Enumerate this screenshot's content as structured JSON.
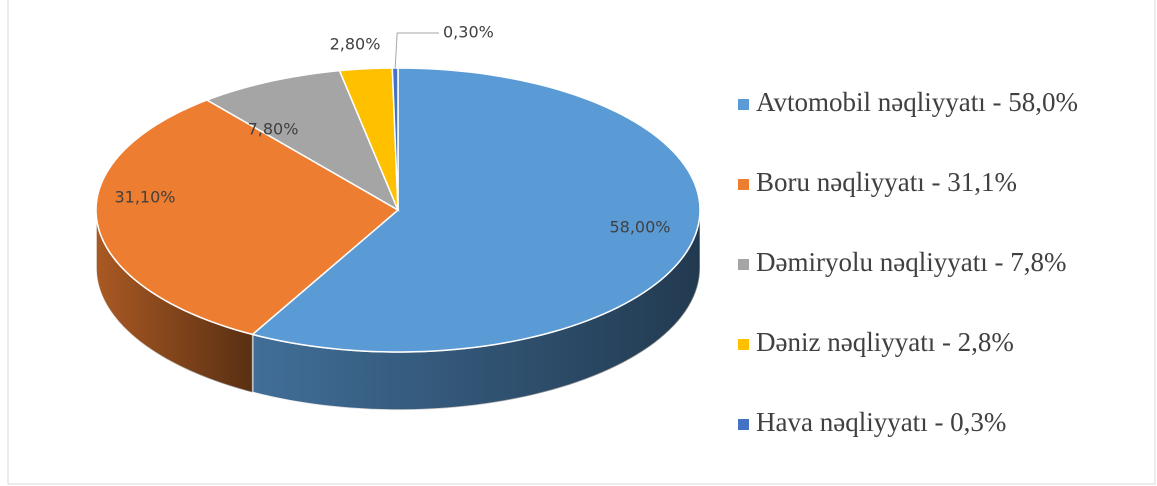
{
  "chart_data": {
    "type": "pie",
    "categories": [
      "Avtomobil nəqliyyatı - 58,0%",
      "Boru nəqliyyatı - 31,1%",
      "Dəmiryolu nəqliyyatı - 7,8%",
      "Dəniz nəqliyyatı - 2,8%",
      "Hava nəqliyyatı - 0,3%"
    ],
    "values": [
      58.0,
      31.1,
      7.8,
      2.8,
      0.3
    ],
    "value_labels": [
      "58,00%",
      "31,10%",
      "7,80%",
      "2,80%",
      "0,30%"
    ],
    "colors": [
      "#5b9bd5",
      "#ed7d31",
      "#a5a5a5",
      "#ffc000",
      "#4472c4"
    ],
    "legend": "right"
  }
}
